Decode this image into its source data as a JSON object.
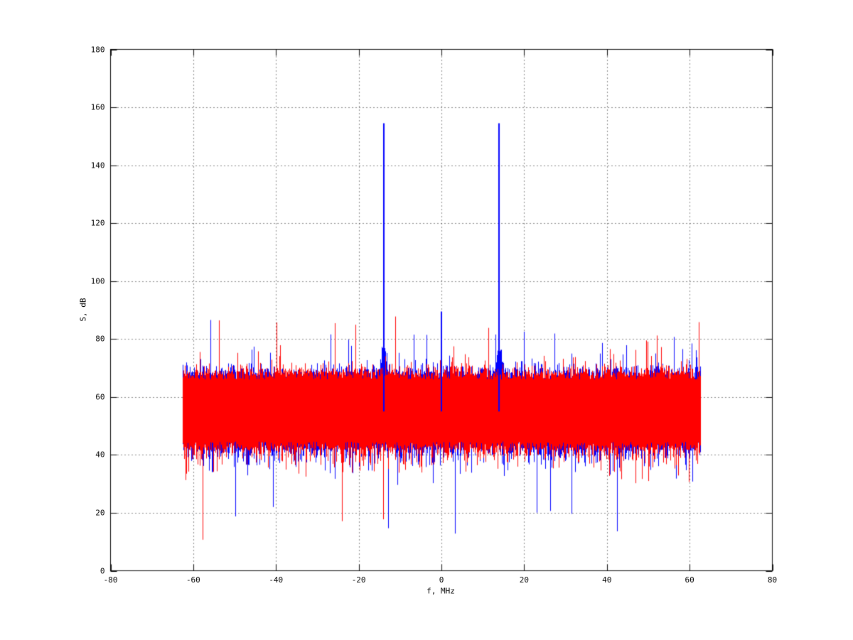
{
  "chart_data": {
    "type": "line",
    "title": "",
    "xlabel": "f, MHz",
    "ylabel": "S, dB",
    "xlim": [
      -80,
      80
    ],
    "ylim": [
      0,
      180
    ],
    "xticks": [
      -80,
      -60,
      -40,
      -20,
      0,
      20,
      40,
      60,
      80
    ],
    "yticks": [
      0,
      20,
      40,
      60,
      80,
      100,
      120,
      140,
      160,
      180
    ],
    "grid": "dotted",
    "legend": "none",
    "background_color": "#ffffff",
    "axis_color": "#000000",
    "noise_seed": 42,
    "series": [
      {
        "name": "spectrum-blue",
        "color": "#0000ff",
        "noise_band": {
          "f_min_mhz": -62.5,
          "f_max_mhz": 62.5,
          "top_mean_db": 67,
          "top_spike_max_db": 88,
          "bottom_mean_db": 43,
          "bottom_spike_min_db": 9
        },
        "peaks": [
          {
            "f_mhz": -14,
            "s_db": 154.5
          },
          {
            "f_mhz": 0,
            "s_db": 89.5
          },
          {
            "f_mhz": 14,
            "s_db": 154.5
          }
        ],
        "skirt_bumps": [
          {
            "f_mhz": -14,
            "s_db": 76
          },
          {
            "f_mhz": 14,
            "s_db": 76
          }
        ]
      },
      {
        "name": "spectrum-red",
        "color": "#ff0000",
        "noise_band": {
          "f_min_mhz": -62.5,
          "f_max_mhz": 62.5,
          "top_mean_db": 67,
          "top_spike_max_db": 88,
          "bottom_mean_db": 43,
          "bottom_spike_min_db": 9
        },
        "peaks": [],
        "skirt_bumps": []
      }
    ]
  }
}
